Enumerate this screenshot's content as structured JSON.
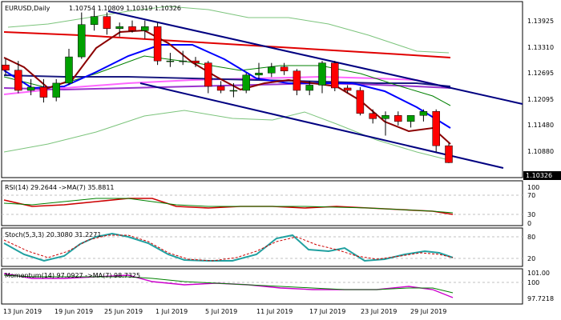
{
  "symbol_header": "EURUSD,Daily",
  "ohlc_header": "1.10754 1.10809 1.10319 1.10326",
  "price_axis": [
    "1.13925",
    "1.13310",
    "1.12695",
    "1.12095",
    "1.11480",
    "1.10880"
  ],
  "current_price": "1.10326",
  "date_axis": [
    "13 Jun 2019",
    "19 Jun 2019",
    "25 Jun 2019",
    "1 Jul 2019",
    "5 Jul 2019",
    "11 Jul 2019",
    "17 Jul 2019",
    "23 Jul 2019",
    "29 Jul 2019"
  ],
  "rsi": {
    "label": "RSI(14) 29.2644  ->MA(7) 35.8811",
    "axis": [
      "100",
      "70",
      "30",
      "0"
    ]
  },
  "stoch": {
    "label": "Stoch(5,3,3) 20.3080 31.2271",
    "axis": [
      "80",
      "20"
    ]
  },
  "momentum": {
    "label": "Momentum(14) 97.0927  ->MA(7) 98.7325",
    "axis": [
      "101.00",
      "100",
      "97.7218"
    ]
  },
  "colors": {
    "bull": "#00a000",
    "bear": "#ff0000",
    "channel": "#000080",
    "grid": "#c0c0c0",
    "current_price_box": "#000000"
  },
  "chart_data": {
    "type": "candlestick",
    "price_range": [
      1.1,
      1.142
    ],
    "candles": [
      {
        "date": "13 Jun 2019",
        "o": 1.1275,
        "h": 1.129,
        "l": 1.125,
        "c": 1.1262
      },
      {
        "date": "14 Jun 2019",
        "o": 1.1262,
        "h": 1.1285,
        "l": 1.1205,
        "c": 1.1212
      },
      {
        "date": "17 Jun 2019",
        "o": 1.1212,
        "h": 1.124,
        "l": 1.12,
        "c": 1.122
      },
      {
        "date": "18 Jun 2019",
        "o": 1.122,
        "h": 1.124,
        "l": 1.1182,
        "c": 1.1195
      },
      {
        "date": "19 Jun 2019",
        "o": 1.1195,
        "h": 1.124,
        "l": 1.1185,
        "c": 1.123
      },
      {
        "date": "20 Jun 2019",
        "o": 1.123,
        "h": 1.1315,
        "l": 1.1225,
        "c": 1.1295
      },
      {
        "date": "21 Jun 2019",
        "o": 1.1295,
        "h": 1.1405,
        "l": 1.129,
        "c": 1.1375
      },
      {
        "date": "24 Jun 2019",
        "o": 1.1375,
        "h": 1.141,
        "l": 1.136,
        "c": 1.1395
      },
      {
        "date": "25 Jun 2019",
        "o": 1.1395,
        "h": 1.1405,
        "l": 1.135,
        "c": 1.1365
      },
      {
        "date": "26 Jun 2019",
        "o": 1.1365,
        "h": 1.138,
        "l": 1.1345,
        "c": 1.137
      },
      {
        "date": "27 Jun 2019",
        "o": 1.137,
        "h": 1.1385,
        "l": 1.1355,
        "c": 1.136
      },
      {
        "date": "28 Jun 2019",
        "o": 1.136,
        "h": 1.1385,
        "l": 1.134,
        "c": 1.137
      },
      {
        "date": "1 Jul 2019",
        "o": 1.137,
        "h": 1.138,
        "l": 1.1275,
        "c": 1.1285
      },
      {
        "date": "2 Jul 2019",
        "o": 1.1285,
        "h": 1.1305,
        "l": 1.127,
        "c": 1.1285
      },
      {
        "date": "3 Jul 2019",
        "o": 1.1285,
        "h": 1.131,
        "l": 1.1275,
        "c": 1.1285
      },
      {
        "date": "4 Jul 2019",
        "o": 1.1285,
        "h": 1.1295,
        "l": 1.127,
        "c": 1.128
      },
      {
        "date": "5 Jul 2019",
        "o": 1.128,
        "h": 1.1285,
        "l": 1.1205,
        "c": 1.1222
      },
      {
        "date": "8 Jul 2019",
        "o": 1.1222,
        "h": 1.1235,
        "l": 1.1205,
        "c": 1.1212
      },
      {
        "date": "9 Jul 2019",
        "o": 1.1212,
        "h": 1.123,
        "l": 1.1195,
        "c": 1.1212
      },
      {
        "date": "10 Jul 2019",
        "o": 1.1212,
        "h": 1.1255,
        "l": 1.1205,
        "c": 1.125
      },
      {
        "date": "11 Jul 2019",
        "o": 1.125,
        "h": 1.128,
        "l": 1.124,
        "c": 1.1255
      },
      {
        "date": "12 Jul 2019",
        "o": 1.1255,
        "h": 1.128,
        "l": 1.1245,
        "c": 1.127
      },
      {
        "date": "15 Jul 2019",
        "o": 1.127,
        "h": 1.128,
        "l": 1.125,
        "c": 1.126
      },
      {
        "date": "16 Jul 2019",
        "o": 1.126,
        "h": 1.1265,
        "l": 1.12,
        "c": 1.1212
      },
      {
        "date": "17 Jul 2019",
        "o": 1.1212,
        "h": 1.1235,
        "l": 1.12,
        "c": 1.1225
      },
      {
        "date": "18 Jul 2019",
        "o": 1.1225,
        "h": 1.1285,
        "l": 1.1205,
        "c": 1.128
      },
      {
        "date": "19 Jul 2019",
        "o": 1.128,
        "h": 1.1285,
        "l": 1.121,
        "c": 1.1218
      },
      {
        "date": "22 Jul 2019",
        "o": 1.1218,
        "h": 1.1225,
        "l": 1.1205,
        "c": 1.1212
      },
      {
        "date": "23 Jul 2019",
        "o": 1.1212,
        "h": 1.122,
        "l": 1.115,
        "c": 1.1155
      },
      {
        "date": "24 Jul 2019",
        "o": 1.1155,
        "h": 1.1165,
        "l": 1.113,
        "c": 1.1142
      },
      {
        "date": "25 Jul 2019",
        "o": 1.1142,
        "h": 1.116,
        "l": 1.11,
        "c": 1.115
      },
      {
        "date": "26 Jul 2019",
        "o": 1.115,
        "h": 1.116,
        "l": 1.1125,
        "c": 1.1135
      },
      {
        "date": "29 Jul 2019",
        "o": 1.1135,
        "h": 1.115,
        "l": 1.112,
        "c": 1.115
      },
      {
        "date": "30 Jul 2019",
        "o": 1.115,
        "h": 1.1165,
        "l": 1.1135,
        "c": 1.116
      },
      {
        "date": "31 Jul 2019",
        "o": 1.116,
        "h": 1.1165,
        "l": 1.106,
        "c": 1.1075
      },
      {
        "date": "1 Aug 2019",
        "o": 1.1075,
        "h": 1.1081,
        "l": 1.1032,
        "c": 1.1033
      }
    ]
  }
}
